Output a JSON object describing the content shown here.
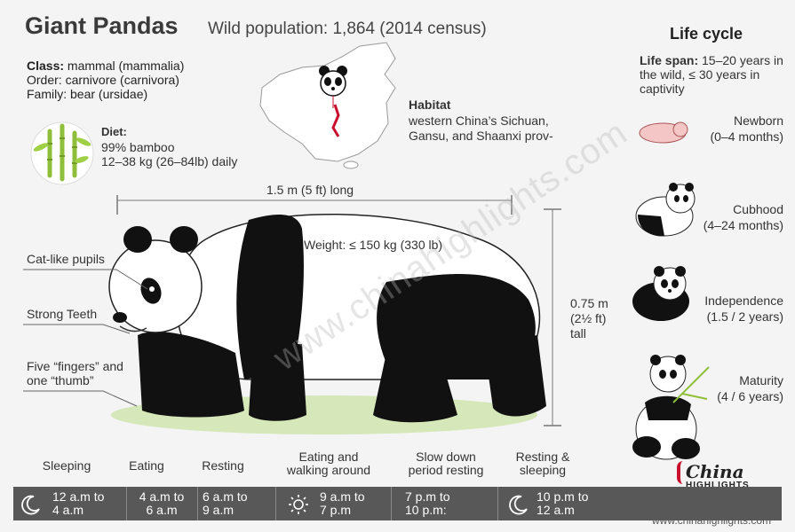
{
  "header": {
    "title": "Giant Pandas",
    "wild_population": "Wild population: 1,864 (2014 census)"
  },
  "taxonomy": {
    "class_label": "Class:",
    "class_value": " mammal (mammalia)",
    "order": "Order: carnivore (carnivora)",
    "family": "Family: bear (ursidae)"
  },
  "diet": {
    "title": "Diet:",
    "line1": "99% bamboo",
    "line2": "12–38 kg (26–84lb) daily"
  },
  "habitat": {
    "title": "Habitat",
    "line1": "western China’s Sichuan,",
    "line2": "Gansu, and Shaanxi prov-"
  },
  "measurements": {
    "length": "1.5 m (5 ft) long",
    "weight": "Weight: ≤ 150 kg (330 lb)",
    "height_1": "0.75 m",
    "height_2": "(2½ ft)",
    "height_3": "tall"
  },
  "callouts": {
    "pupils": "Cat-like pupils",
    "teeth": "Strong Teeth",
    "fingers_1": "Five “fingers” and",
    "fingers_2": "one “thumb”"
  },
  "life_cycle": {
    "title": "Life cycle",
    "span_label": "Life span:",
    "span_text": " 15–20 years in the wild, ≤ 30 years in captivity",
    "stages": [
      {
        "name": "Newborn",
        "period": "(0–4 months)"
      },
      {
        "name": "Cubhood",
        "period": "(4–24 months)"
      },
      {
        "name": "Independence",
        "period": "(1.5 / 2 years)"
      },
      {
        "name": "Maturity",
        "period": "(4 / 6 years)"
      }
    ]
  },
  "schedule": {
    "activities": [
      {
        "l1": "Sleeping",
        "l2": ""
      },
      {
        "l1": "Eating",
        "l2": ""
      },
      {
        "l1": "Resting",
        "l2": ""
      },
      {
        "l1": "Eating and",
        "l2": "walking around"
      },
      {
        "l1": "Slow down",
        "l2": "period resting"
      },
      {
        "l1": "Resting &",
        "l2": "sleeping"
      }
    ],
    "times": [
      {
        "l1": "12 a.m to",
        "l2": "4 a.m",
        "icon": "moon-icon"
      },
      {
        "l1": "4 a.m to",
        "l2": "6 a.m",
        "icon": ""
      },
      {
        "l1": "6 a.m to",
        "l2": "9 a.m",
        "icon": ""
      },
      {
        "l1": "9 a.m to",
        "l2": "7 p.m",
        "icon": "sun-icon"
      },
      {
        "l1": "7 p.m to",
        "l2": "10 p.m:",
        "icon": ""
      },
      {
        "l1": "10 p.m to",
        "l2": "12 a.m",
        "icon": "moon-icon"
      }
    ]
  },
  "branding": {
    "logo_top": "China",
    "logo_bottom": "HIGHLIGHTS",
    "website": "www.chinahighlights.com",
    "watermark": "www.chinahighlights.com"
  },
  "colors": {
    "timeline_bar": "#585858",
    "accent_red": "#c8102e",
    "bamboo": "#8fbf3a"
  }
}
